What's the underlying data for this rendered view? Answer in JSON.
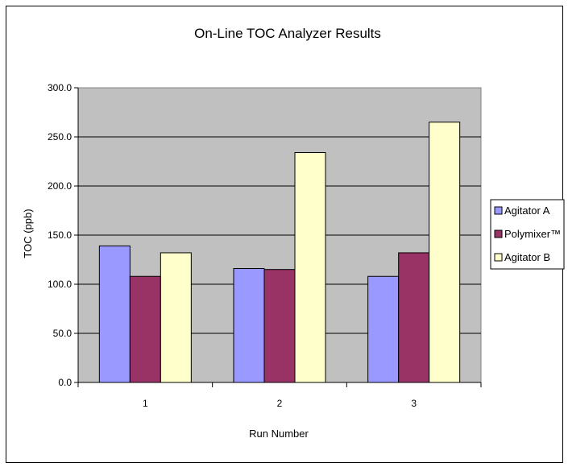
{
  "chart_data": {
    "type": "bar",
    "title": "On-Line TOC Analyzer Results",
    "xlabel": "Run Number",
    "ylabel": "TOC (ppb)",
    "categories": [
      "1",
      "2",
      "3"
    ],
    "series": [
      {
        "name": "Agitator A",
        "values": [
          139,
          116,
          108
        ],
        "color": "#9999ff"
      },
      {
        "name": "Polymixer™",
        "values": [
          108,
          115,
          132
        ],
        "color": "#993366"
      },
      {
        "name": "Agitator B",
        "values": [
          132,
          234,
          265
        ],
        "color": "#ffffcc"
      }
    ],
    "ylim": [
      0,
      300
    ],
    "yticks": [
      "0.0",
      "50.0",
      "100.0",
      "150.0",
      "200.0",
      "250.0",
      "300.0"
    ],
    "grid": true,
    "legend_position": "right",
    "plot_background": "#c0c0c0"
  }
}
